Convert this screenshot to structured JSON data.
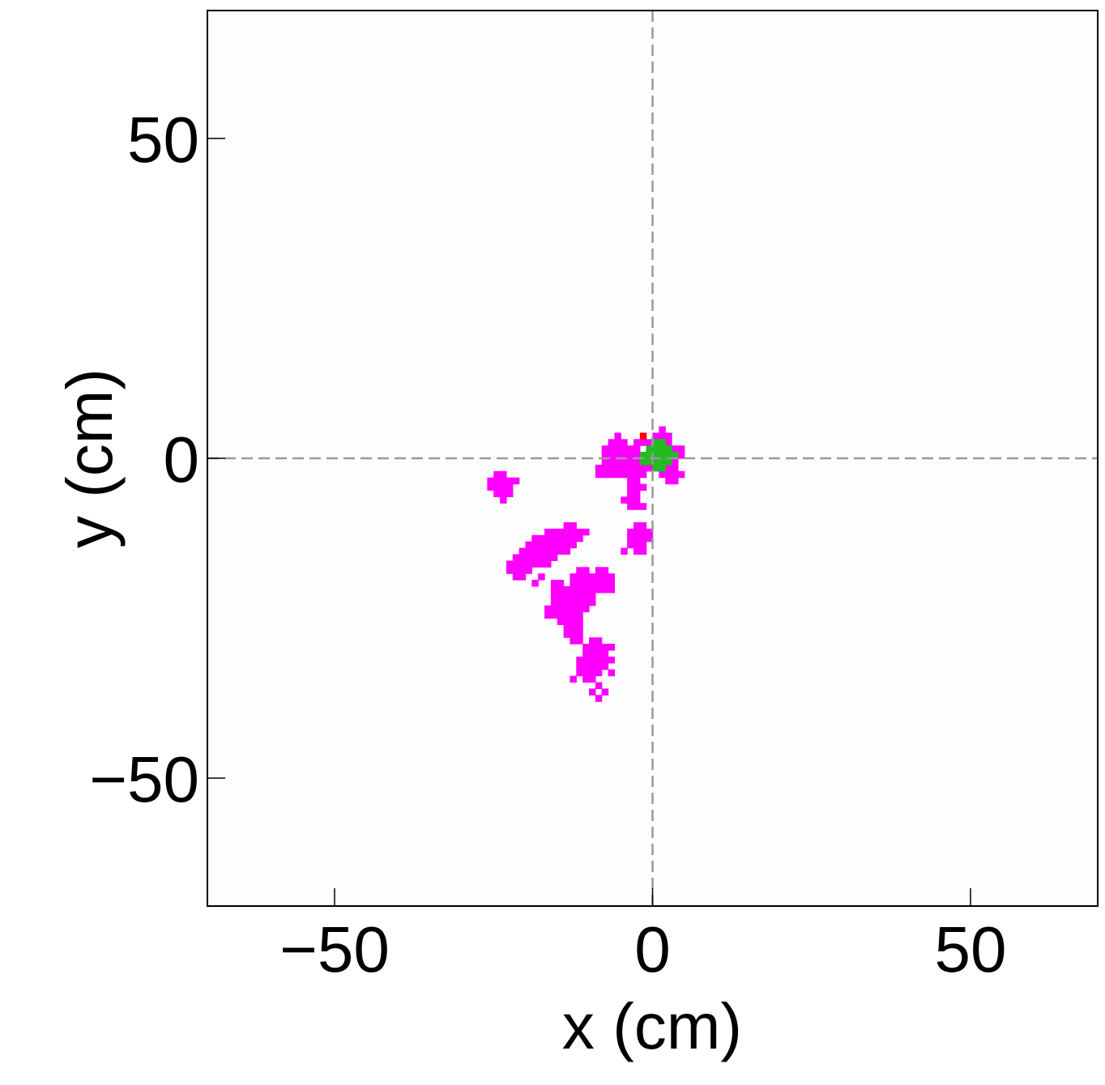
{
  "chart_data": {
    "type": "scatter",
    "title": "",
    "xlabel": "x (cm)",
    "ylabel": "y (cm)",
    "xlim": [
      -70,
      70
    ],
    "ylim": [
      -70,
      70
    ],
    "x_ticks": [
      -50,
      0,
      50
    ],
    "y_ticks": [
      -50,
      0,
      50
    ],
    "x_tick_labels": [
      "−50",
      "0",
      "50"
    ],
    "y_tick_labels": [
      "−50",
      "0",
      "50"
    ],
    "grid": false,
    "reference_lines": {
      "x": 0,
      "y": 0,
      "style": "dashed",
      "color": "#999999"
    },
    "cell_size": 1,
    "series": [
      {
        "color": "#ff00ff",
        "points": [
          [
            -25,
            -3
          ],
          [
            -24,
            -3
          ],
          [
            -25,
            -4
          ],
          [
            -24,
            -4
          ],
          [
            -23,
            -4
          ],
          [
            -26,
            -4
          ],
          [
            -25,
            -5
          ],
          [
            -24,
            -5
          ],
          [
            -23,
            -5
          ],
          [
            -22,
            -4
          ],
          [
            -26,
            -5
          ],
          [
            -25,
            -6
          ],
          [
            -24,
            -6
          ],
          [
            -23,
            -6
          ],
          [
            -24,
            -7
          ],
          [
            -8,
            -1
          ],
          [
            -7,
            -1
          ],
          [
            -6,
            -1
          ],
          [
            -5,
            -1
          ],
          [
            -4,
            -1
          ],
          [
            -3,
            -1
          ],
          [
            -2,
            -1
          ],
          [
            -8,
            -2
          ],
          [
            -7,
            -2
          ],
          [
            -6,
            -2
          ],
          [
            -5,
            -2
          ],
          [
            -4,
            -2
          ],
          [
            -3,
            -2
          ],
          [
            -2,
            -2
          ],
          [
            -9,
            -2
          ],
          [
            -8,
            -3
          ],
          [
            -7,
            -3
          ],
          [
            -6,
            -3
          ],
          [
            -5,
            -3
          ],
          [
            -4,
            -3
          ],
          [
            -3,
            -3
          ],
          [
            -2,
            -3
          ],
          [
            -9,
            -3
          ],
          [
            -8,
            0
          ],
          [
            -7,
            0
          ],
          [
            -6,
            0
          ],
          [
            -5,
            0
          ],
          [
            -4,
            0
          ],
          [
            -3,
            0
          ],
          [
            -2,
            0
          ],
          [
            -8,
            1
          ],
          [
            -7,
            1
          ],
          [
            -6,
            1
          ],
          [
            -5,
            1
          ],
          [
            -4,
            1
          ],
          [
            -3,
            1
          ],
          [
            -7,
            2
          ],
          [
            -6,
            2
          ],
          [
            -5,
            2
          ],
          [
            -3,
            2
          ],
          [
            -2,
            2
          ],
          [
            -6,
            3
          ],
          [
            -4,
            -4
          ],
          [
            -3,
            -4
          ],
          [
            -4,
            -5
          ],
          [
            -3,
            -5
          ],
          [
            -2,
            -5
          ],
          [
            -4,
            -6
          ],
          [
            -3,
            -6
          ],
          [
            -4,
            -7
          ],
          [
            -3,
            -7
          ],
          [
            -4,
            -8
          ],
          [
            -3,
            -8
          ],
          [
            -2,
            -8
          ],
          [
            -5,
            -7
          ],
          [
            -3,
            -11
          ],
          [
            -2,
            -11
          ],
          [
            -4,
            -12
          ],
          [
            -3,
            -12
          ],
          [
            -2,
            -12
          ],
          [
            -1,
            -12
          ],
          [
            -4,
            -13
          ],
          [
            -3,
            -13
          ],
          [
            -2,
            -13
          ],
          [
            -1,
            -13
          ],
          [
            -4,
            -14
          ],
          [
            -3,
            -14
          ],
          [
            -2,
            -14
          ],
          [
            -3,
            -15
          ],
          [
            -2,
            -15
          ],
          [
            -5,
            -15
          ],
          [
            -1,
            1
          ],
          [
            0,
            1
          ],
          [
            1,
            1
          ],
          [
            2,
            1
          ],
          [
            3,
            1
          ],
          [
            -1,
            2
          ],
          [
            0,
            2
          ],
          [
            1,
            2
          ],
          [
            2,
            2
          ],
          [
            0,
            3
          ],
          [
            1,
            3
          ],
          [
            2,
            3
          ],
          [
            1,
            4
          ],
          [
            3,
            0
          ],
          [
            4,
            0
          ],
          [
            4,
            1
          ],
          [
            -1,
            -1
          ],
          [
            -1,
            -2
          ],
          [
            3,
            -1
          ],
          [
            3,
            -2
          ],
          [
            2,
            -2
          ],
          [
            1,
            -3
          ],
          [
            2,
            -3
          ],
          [
            3,
            -3
          ],
          [
            4,
            -3
          ],
          [
            2,
            -4
          ],
          [
            3,
            -4
          ],
          [
            -14,
            -11
          ],
          [
            -13,
            -11
          ],
          [
            -15,
            -12
          ],
          [
            -14,
            -12
          ],
          [
            -13,
            -12
          ],
          [
            -12,
            -12
          ],
          [
            -11,
            -12
          ],
          [
            -17,
            -12
          ],
          [
            -16,
            -12
          ],
          [
            -15,
            -13
          ],
          [
            -14,
            -13
          ],
          [
            -13,
            -13
          ],
          [
            -12,
            -13
          ],
          [
            -18,
            -13
          ],
          [
            -17,
            -13
          ],
          [
            -16,
            -13
          ],
          [
            -19,
            -13
          ],
          [
            -15,
            -14
          ],
          [
            -14,
            -14
          ],
          [
            -13,
            -14
          ],
          [
            -18,
            -14
          ],
          [
            -17,
            -14
          ],
          [
            -16,
            -14
          ],
          [
            -19,
            -14
          ],
          [
            -20,
            -14
          ],
          [
            -15,
            -15
          ],
          [
            -14,
            -15
          ],
          [
            -18,
            -15
          ],
          [
            -17,
            -15
          ],
          [
            -16,
            -15
          ],
          [
            -19,
            -15
          ],
          [
            -20,
            -15
          ],
          [
            -21,
            -15
          ],
          [
            -16,
            -16
          ],
          [
            -18,
            -16
          ],
          [
            -17,
            -16
          ],
          [
            -19,
            -16
          ],
          [
            -20,
            -16
          ],
          [
            -21,
            -16
          ],
          [
            -22,
            -16
          ],
          [
            -18,
            -17
          ],
          [
            -17,
            -17
          ],
          [
            -19,
            -17
          ],
          [
            -20,
            -17
          ],
          [
            -21,
            -17
          ],
          [
            -22,
            -17
          ],
          [
            -23,
            -17
          ],
          [
            -20,
            -18
          ],
          [
            -21,
            -18
          ],
          [
            -22,
            -18
          ],
          [
            -23,
            -18
          ],
          [
            -21,
            -19
          ],
          [
            -22,
            -19
          ],
          [
            -18,
            -19
          ],
          [
            -19,
            -20
          ],
          [
            -12,
            -18
          ],
          [
            -11,
            -18
          ],
          [
            -9,
            -18
          ],
          [
            -8,
            -18
          ],
          [
            -13,
            -19
          ],
          [
            -12,
            -19
          ],
          [
            -11,
            -19
          ],
          [
            -10,
            -19
          ],
          [
            -9,
            -19
          ],
          [
            -8,
            -19
          ],
          [
            -7,
            -19
          ],
          [
            -13,
            -20
          ],
          [
            -12,
            -20
          ],
          [
            -11,
            -20
          ],
          [
            -10,
            -20
          ],
          [
            -9,
            -20
          ],
          [
            -8,
            -20
          ],
          [
            -7,
            -20
          ],
          [
            -15,
            -20
          ],
          [
            -16,
            -20
          ],
          [
            -14,
            -21
          ],
          [
            -13,
            -21
          ],
          [
            -12,
            -21
          ],
          [
            -11,
            -21
          ],
          [
            -10,
            -21
          ],
          [
            -9,
            -21
          ],
          [
            -8,
            -21
          ],
          [
            -7,
            -21
          ],
          [
            -15,
            -21
          ],
          [
            -16,
            -21
          ],
          [
            -15,
            -22
          ],
          [
            -14,
            -22
          ],
          [
            -13,
            -22
          ],
          [
            -12,
            -22
          ],
          [
            -11,
            -22
          ],
          [
            -10,
            -22
          ],
          [
            -16,
            -22
          ],
          [
            -15,
            -23
          ],
          [
            -14,
            -23
          ],
          [
            -13,
            -23
          ],
          [
            -12,
            -23
          ],
          [
            -11,
            -23
          ],
          [
            -10,
            -23
          ],
          [
            -16,
            -23
          ],
          [
            -15,
            -24
          ],
          [
            -14,
            -24
          ],
          [
            -13,
            -24
          ],
          [
            -12,
            -24
          ],
          [
            -11,
            -24
          ],
          [
            -17,
            -24
          ],
          [
            -16,
            -24
          ],
          [
            -15,
            -25
          ],
          [
            -14,
            -25
          ],
          [
            -13,
            -25
          ],
          [
            -12,
            -25
          ],
          [
            -17,
            -25
          ],
          [
            -16,
            -25
          ],
          [
            -15,
            -26
          ],
          [
            -14,
            -26
          ],
          [
            -13,
            -26
          ],
          [
            -12,
            -26
          ],
          [
            -14,
            -27
          ],
          [
            -13,
            -27
          ],
          [
            -12,
            -27
          ],
          [
            -14,
            -28
          ],
          [
            -13,
            -28
          ],
          [
            -12,
            -28
          ],
          [
            -13,
            -29
          ],
          [
            -12,
            -29
          ],
          [
            -10,
            -29
          ],
          [
            -9,
            -29
          ],
          [
            -11,
            -30
          ],
          [
            -10,
            -30
          ],
          [
            -9,
            -30
          ],
          [
            -8,
            -30
          ],
          [
            -7,
            -30
          ],
          [
            -11,
            -31
          ],
          [
            -10,
            -31
          ],
          [
            -9,
            -31
          ],
          [
            -8,
            -31
          ],
          [
            -12,
            -32
          ],
          [
            -11,
            -32
          ],
          [
            -10,
            -32
          ],
          [
            -9,
            -32
          ],
          [
            -8,
            -32
          ],
          [
            -7,
            -32
          ],
          [
            -12,
            -33
          ],
          [
            -11,
            -33
          ],
          [
            -10,
            -33
          ],
          [
            -9,
            -33
          ],
          [
            -8,
            -33
          ],
          [
            -12,
            -34
          ],
          [
            -11,
            -34
          ],
          [
            -10,
            -34
          ],
          [
            -9,
            -34
          ],
          [
            -7,
            -34
          ],
          [
            -13,
            -35
          ],
          [
            -11,
            -35
          ],
          [
            -10,
            -35
          ],
          [
            -9,
            -36
          ],
          [
            -8,
            -37
          ],
          [
            -10,
            -37
          ],
          [
            -9,
            -38
          ]
        ]
      },
      {
        "color": "#ff0000",
        "points": [
          [
            -2,
            3
          ]
        ]
      },
      {
        "color": "#22bb22",
        "points": [
          [
            0,
            2
          ],
          [
            1,
            2
          ],
          [
            -1,
            1
          ],
          [
            0,
            1
          ],
          [
            1,
            1
          ],
          [
            2,
            1
          ],
          [
            -1,
            0
          ],
          [
            0,
            0
          ],
          [
            1,
            0
          ],
          [
            2,
            0
          ],
          [
            3,
            0
          ],
          [
            -1,
            -1
          ],
          [
            0,
            -1
          ],
          [
            1,
            -1
          ],
          [
            2,
            -1
          ],
          [
            0,
            -2
          ],
          [
            1,
            -2
          ],
          [
            -2,
            -1
          ],
          [
            -2,
            0
          ]
        ]
      }
    ]
  }
}
